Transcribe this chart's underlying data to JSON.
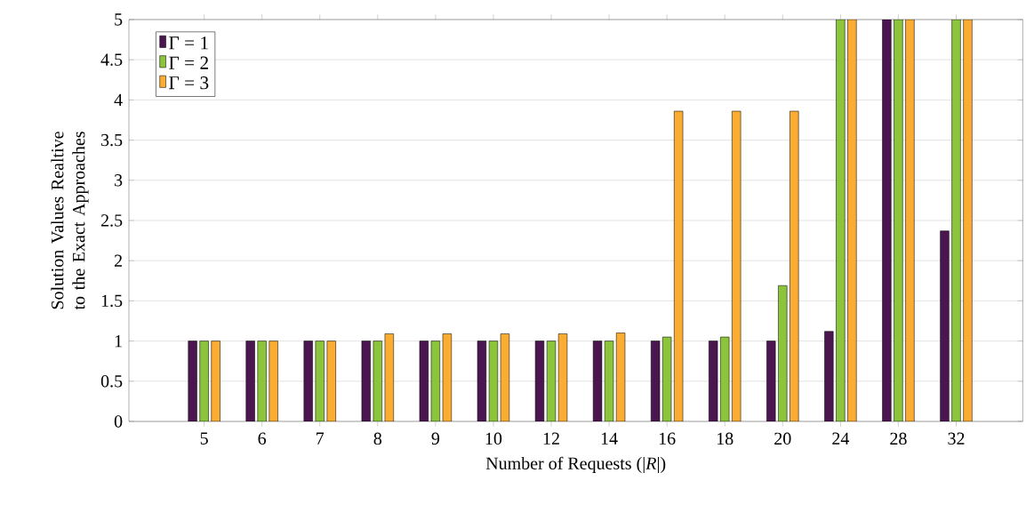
{
  "chart_data": {
    "type": "bar",
    "xlabel": "Number of Requests (|*R*|)",
    "ylabel": "Solution Values Realtive to the Exact Approaches",
    "categories": [
      "5",
      "6",
      "7",
      "8",
      "9",
      "10",
      "12",
      "14",
      "16",
      "18",
      "20",
      "24",
      "28",
      "32"
    ],
    "series": [
      {
        "name": "Γ = 1",
        "color": "#4b1550",
        "values": [
          1,
          1,
          1,
          1,
          1,
          1,
          1,
          1,
          1,
          1,
          1,
          1.12,
          5,
          2.37
        ]
      },
      {
        "name": "Γ = 2",
        "color": "#8cc43c",
        "values": [
          1,
          1,
          1,
          1,
          1,
          1,
          1,
          1,
          1.05,
          1.05,
          1.69,
          5,
          5,
          5
        ]
      },
      {
        "name": "Γ = 3",
        "color": "#fbac32",
        "values": [
          1,
          1,
          1,
          1.09,
          1.09,
          1.09,
          1.09,
          1.1,
          3.86,
          3.86,
          3.86,
          5,
          5,
          5
        ]
      }
    ],
    "ylim": [
      0,
      5
    ],
    "yticks": [
      0,
      0.5,
      1,
      1.5,
      2,
      2.5,
      3,
      3.5,
      4,
      4.5,
      5
    ],
    "grid": "y",
    "legend": "top left"
  }
}
